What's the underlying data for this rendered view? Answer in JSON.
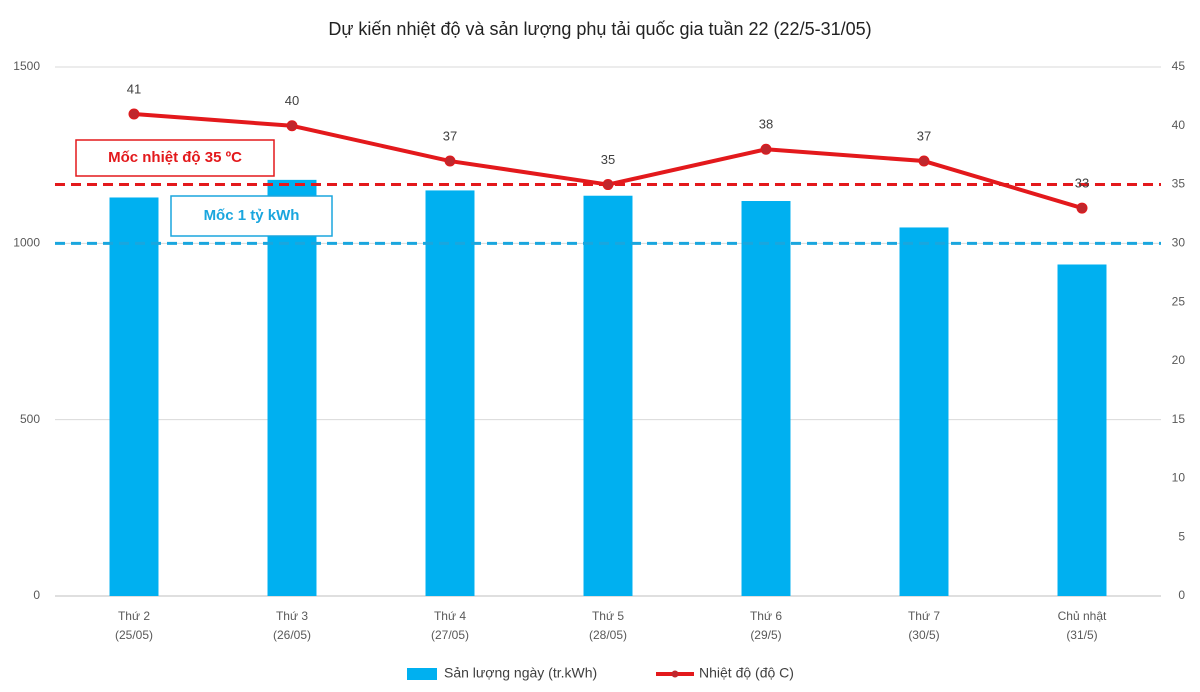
{
  "chart_data": {
    "type": "bar-line",
    "title": "Dự kiến nhiệt độ và sản lượng phụ tải quốc gia tuần 22 (22/5-31/05)",
    "categories": [
      [
        "Thứ 2",
        "(25/05)"
      ],
      [
        "Thứ 3",
        "(26/05)"
      ],
      [
        "Thứ 4",
        "(27/05)"
      ],
      [
        "Thứ 5",
        "(28/05)"
      ],
      [
        "Thứ 6",
        "(29/5)"
      ],
      [
        "Thứ 7",
        "(30/5)"
      ],
      [
        "Chủ nhật",
        "(31/5)"
      ]
    ],
    "series": [
      {
        "name": "Sản lượng ngày (tr.kWh)",
        "type": "bar",
        "color": "#00b0f0",
        "values": [
          1130,
          1180,
          1150,
          1135,
          1120,
          1045,
          940
        ]
      },
      {
        "name": "Nhiệt độ (độ C)",
        "type": "line",
        "axis": "y2",
        "color": "#e3191c",
        "values": [
          41,
          40,
          37,
          35,
          38,
          37,
          33
        ]
      }
    ],
    "ylim": [
      0,
      1500
    ],
    "yticks": [
      0,
      500,
      1000,
      1500
    ],
    "y2lim": [
      0,
      45
    ],
    "y2ticks": [
      0,
      5,
      10,
      15,
      20,
      25,
      30,
      35,
      40,
      45
    ],
    "grid": true,
    "legend": "bottom",
    "reference_lines": [
      {
        "label": "Mốc nhiệt độ 35 ºC",
        "value": 35,
        "axis": "y2",
        "color": "#e3191c"
      },
      {
        "label": "Mốc 1 tỷ kWh",
        "value": 1000,
        "axis": "y",
        "color": "#1aa6de"
      }
    ]
  }
}
